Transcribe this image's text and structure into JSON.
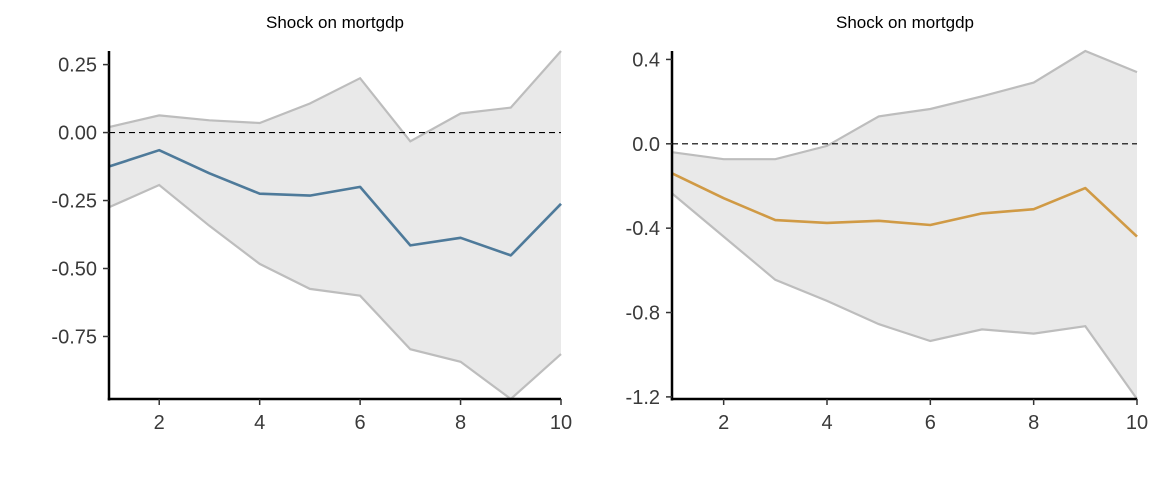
{
  "chart_data": [
    {
      "type": "area",
      "title": "Shock on mortgdp",
      "xlabel": "",
      "ylabel": "",
      "x": [
        1,
        2,
        3,
        4,
        5,
        6,
        7,
        8,
        9,
        10
      ],
      "xticks": [
        2,
        4,
        6,
        8,
        10
      ],
      "xlim": [
        1,
        10
      ],
      "yticks": [
        0.25,
        0.0,
        -0.25,
        -0.5,
        -0.75
      ],
      "ytick_labels": [
        "0.25",
        "0.00",
        "-0.25",
        "-0.50",
        "-0.75"
      ],
      "ylim": [
        -0.98,
        0.3
      ],
      "zero_line": 0,
      "grid": false,
      "line_color": "#4e7a9a",
      "band_fill": "#e9e9e9",
      "band_edge": "#bdbdbd",
      "series": [
        {
          "role": "estimate",
          "values": [
            -0.125,
            -0.065,
            -0.15,
            -0.225,
            -0.232,
            -0.2,
            -0.415,
            -0.387,
            -0.452,
            -0.262
          ]
        },
        {
          "role": "upper",
          "values": [
            0.02,
            0.063,
            0.045,
            0.035,
            0.107,
            0.2,
            -0.032,
            0.07,
            0.092,
            0.3
          ]
        },
        {
          "role": "lower",
          "values": [
            -0.275,
            -0.193,
            -0.343,
            -0.483,
            -0.575,
            -0.6,
            -0.797,
            -0.843,
            -0.98,
            -0.815
          ]
        }
      ]
    },
    {
      "type": "area",
      "title": "Shock on mortgdp",
      "xlabel": "",
      "ylabel": "",
      "x": [
        1,
        2,
        3,
        4,
        5,
        6,
        7,
        8,
        9,
        10
      ],
      "xticks": [
        2,
        4,
        6,
        8,
        10
      ],
      "xlim": [
        1,
        10
      ],
      "yticks": [
        0.4,
        0.0,
        -0.4,
        -0.8,
        -1.2
      ],
      "ytick_labels": [
        "0.4",
        "0.0",
        "-0.4",
        "-0.8",
        "-1.2"
      ],
      "ylim": [
        -1.21,
        0.44
      ],
      "zero_line": 0,
      "grid": false,
      "line_color": "#d09a45",
      "band_fill": "#e9e9e9",
      "band_edge": "#bdbdbd",
      "series": [
        {
          "role": "estimate",
          "values": [
            -0.14,
            -0.258,
            -0.362,
            -0.375,
            -0.365,
            -0.385,
            -0.33,
            -0.31,
            -0.21,
            -0.44
          ]
        },
        {
          "role": "upper",
          "values": [
            -0.04,
            -0.073,
            -0.073,
            -0.01,
            0.13,
            0.165,
            0.225,
            0.29,
            0.44,
            0.34
          ]
        },
        {
          "role": "lower",
          "values": [
            -0.235,
            -0.44,
            -0.645,
            -0.745,
            -0.855,
            -0.935,
            -0.88,
            -0.9,
            -0.865,
            -1.21
          ]
        }
      ]
    }
  ]
}
